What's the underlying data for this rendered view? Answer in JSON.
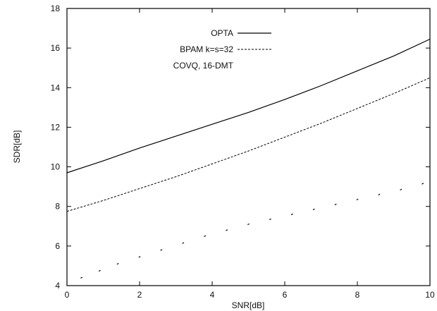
{
  "chart_data": {
    "type": "line",
    "xlabel": "SNR[dB]",
    "ylabel": "SDR[dB]",
    "xlim": [
      0,
      10
    ],
    "ylim": [
      4,
      18
    ],
    "xticks": [
      0,
      2,
      4,
      6,
      8,
      10
    ],
    "yticks": [
      4,
      6,
      8,
      10,
      12,
      14,
      16,
      18
    ],
    "grid": false,
    "legend_position": "top-center",
    "series": [
      {
        "name": "OPTA",
        "style": "solid",
        "color": "#000000",
        "x": [
          0,
          1,
          2,
          3,
          4,
          5,
          6,
          7,
          8,
          9,
          10
        ],
        "y": [
          9.7,
          10.3,
          10.95,
          11.55,
          12.15,
          12.75,
          13.4,
          14.1,
          14.85,
          15.6,
          16.45
        ]
      },
      {
        "name": "BPAM k=s=32",
        "style": "dashed",
        "color": "#000000",
        "x": [
          0,
          1,
          2,
          3,
          4,
          5,
          6,
          7,
          8,
          9,
          10
        ],
        "y": [
          7.75,
          8.3,
          8.9,
          9.5,
          10.15,
          10.8,
          11.5,
          12.2,
          12.95,
          13.7,
          14.5
        ]
      },
      {
        "name": "COVQ, 16-DMT",
        "style": "dotted",
        "color": "#000000",
        "x": [
          0.4,
          0.9,
          1.4,
          2.0,
          2.6,
          3.2,
          3.8,
          4.4,
          5.0,
          5.6,
          6.2,
          6.8,
          7.4,
          8.0,
          8.6,
          9.2,
          9.8
        ],
        "y": [
          4.4,
          4.75,
          5.1,
          5.45,
          5.8,
          6.15,
          6.5,
          6.8,
          7.1,
          7.35,
          7.6,
          7.85,
          8.1,
          8.35,
          8.6,
          8.85,
          9.15
        ]
      }
    ]
  }
}
